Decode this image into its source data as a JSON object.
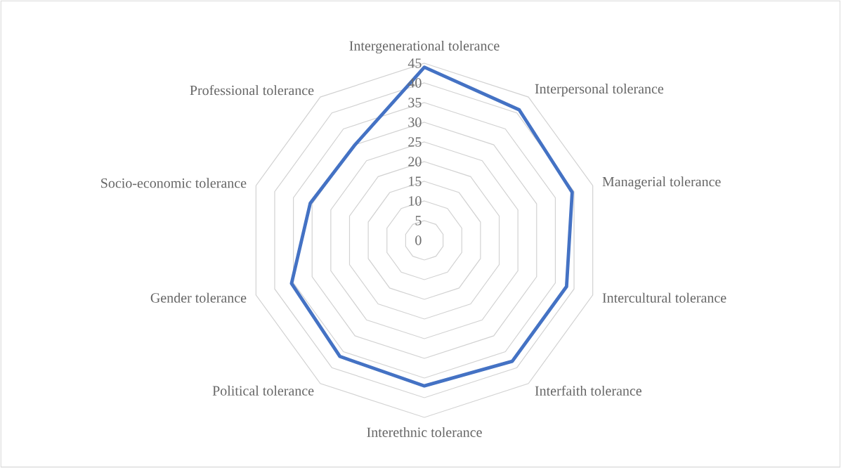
{
  "chart_data": {
    "type": "radar",
    "categories": [
      "Intergenerational tolerance",
      "Interpersonal tolerance",
      "Managerial tolerance",
      "Intercultural tolerance",
      "Interfaith tolerance",
      "Interethnic tolerance",
      "Political tolerance",
      "Gender tolerance",
      "Socio-economic tolerance",
      "Professional tolerance"
    ],
    "series": [
      {
        "color": "#4472c4",
        "values": [
          44,
          41,
          39.5,
          38,
          38,
          37,
          36.5,
          35.5,
          30.5,
          30
        ]
      }
    ],
    "ylim": [
      0,
      45
    ],
    "yticks": [
      0,
      5,
      10,
      15,
      20,
      25,
      30,
      35,
      40,
      45
    ],
    "grid": true
  }
}
